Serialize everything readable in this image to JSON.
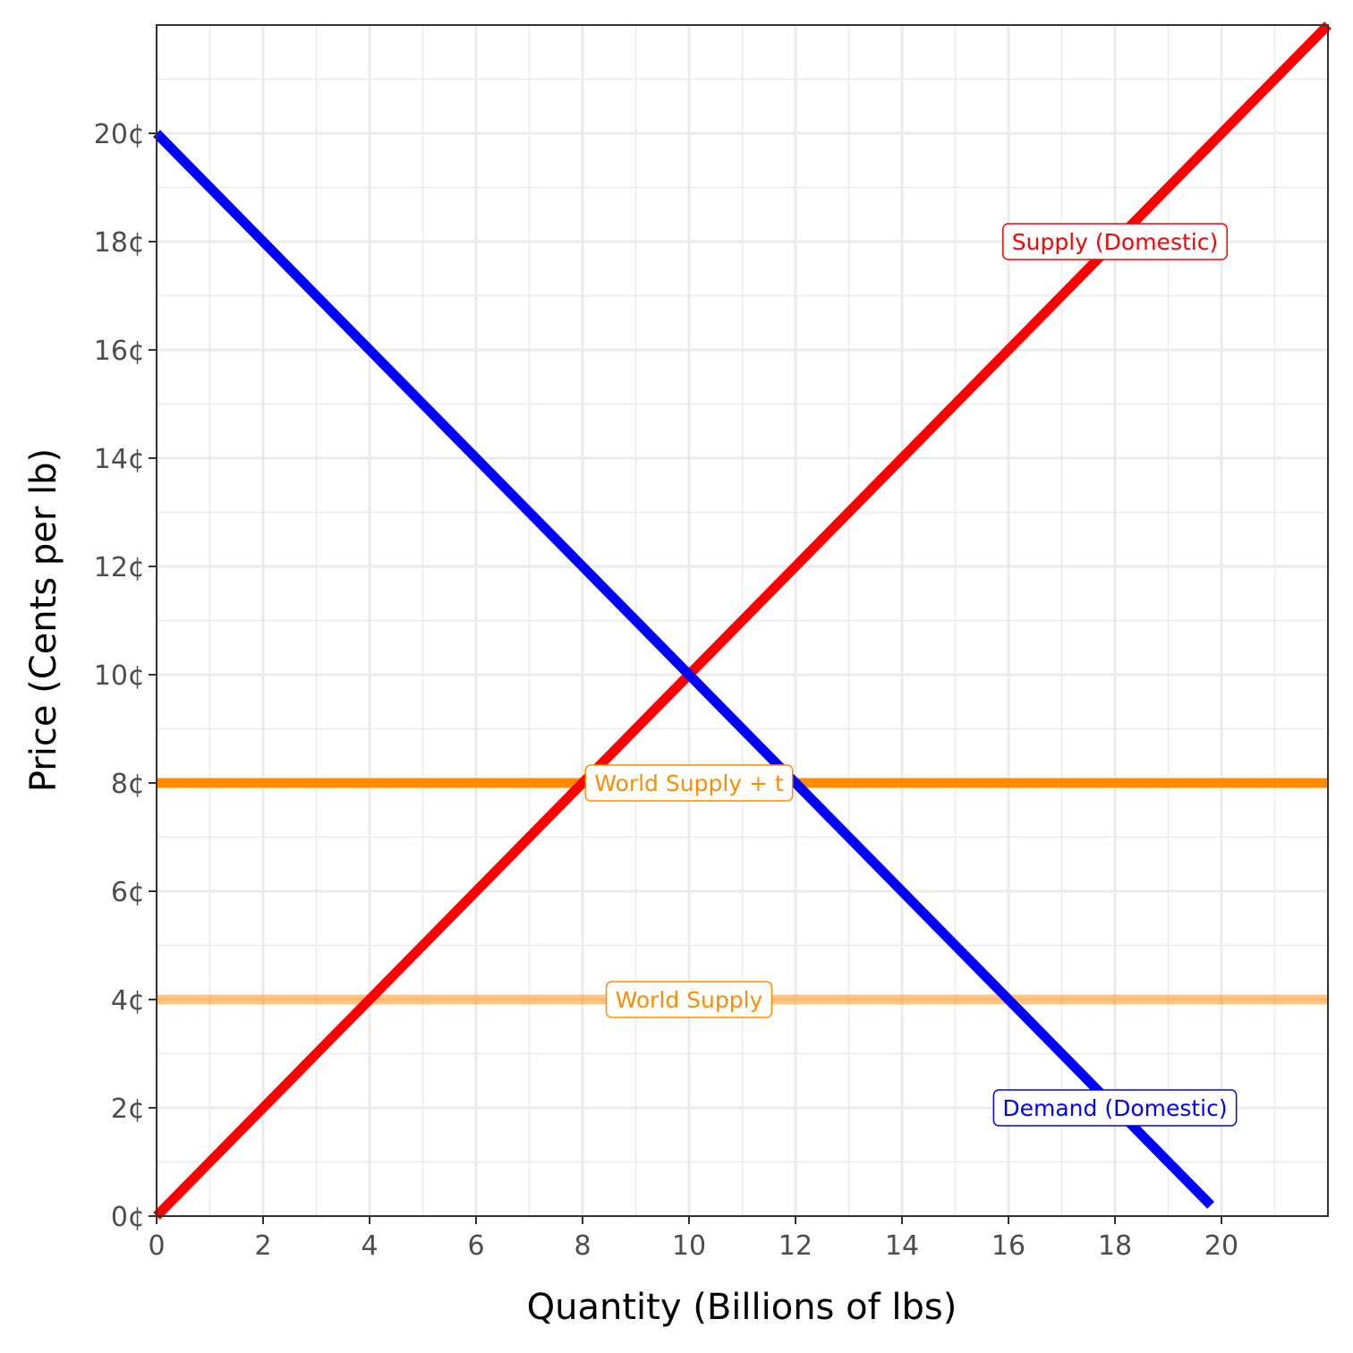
{
  "chart_data": {
    "type": "line",
    "xlabel": "Quantity (Billions of lbs)",
    "ylabel": "Price (Cents per lb)",
    "xlim": [
      0,
      22
    ],
    "ylim": [
      0,
      22
    ],
    "x_ticks": [
      0,
      2,
      4,
      6,
      8,
      10,
      12,
      14,
      16,
      18,
      20
    ],
    "y_ticks": [
      0,
      2,
      4,
      6,
      8,
      10,
      12,
      14,
      16,
      18,
      20
    ],
    "y_tick_labels": [
      "0¢",
      "2¢",
      "4¢",
      "6¢",
      "8¢",
      "10¢",
      "12¢",
      "14¢",
      "16¢",
      "18¢",
      "20¢"
    ],
    "grid": true,
    "series": [
      {
        "name": "Demand (Domestic)",
        "color": "#0000ff",
        "opacity": 1,
        "x": [
          0,
          19.8
        ],
        "y": [
          20,
          0.2
        ]
      },
      {
        "name": "Supply (Domestic)",
        "color": "#ff0000",
        "opacity": 1,
        "x": [
          0,
          22
        ],
        "y": [
          0,
          22
        ]
      },
      {
        "name": "World Supply + t",
        "color": "#ff8c00",
        "opacity": 1,
        "x": [
          0,
          22
        ],
        "y": [
          8,
          8
        ]
      },
      {
        "name": "World Supply",
        "color": "#ff8c00",
        "opacity": 0.5,
        "x": [
          0,
          22
        ],
        "y": [
          4,
          4
        ]
      }
    ],
    "annotations": [
      {
        "text": "Supply (Domestic)",
        "x": 18,
        "y": 18,
        "color": "#ff0000"
      },
      {
        "text": "World Supply + t",
        "x": 10,
        "y": 8,
        "color": "#ff8c00"
      },
      {
        "text": "World Supply",
        "x": 10,
        "y": 4,
        "color": "#ff8c00"
      },
      {
        "text": "Demand (Domestic)",
        "x": 18,
        "y": 2,
        "color": "#0000ff"
      }
    ]
  }
}
